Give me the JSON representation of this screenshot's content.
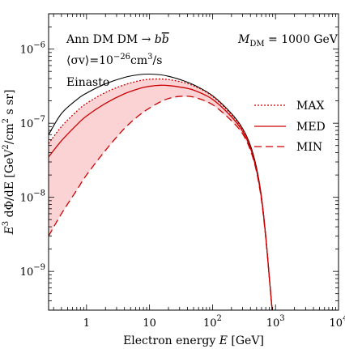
{
  "chart_data": {
    "type": "line",
    "xscale": "log",
    "yscale": "log",
    "xlim": [
      0.25,
      10000
    ],
    "ylim": [
      3e-10,
      3e-06
    ],
    "xlabel": "Electron energy E [GeV]",
    "ylabel": "E^3 dΦ/dE [GeV^2/cm^2 s sr]",
    "xticks": [
      {
        "value": 1,
        "label": "1"
      },
      {
        "value": 10,
        "label": "10"
      },
      {
        "value": 100,
        "label": "10^2"
      },
      {
        "value": 1000,
        "label": "10^3"
      },
      {
        "value": 10000,
        "label": "10^4"
      }
    ],
    "yticks": [
      {
        "value": 1e-09,
        "label": "10^-9"
      },
      {
        "value": 1e-08,
        "label": "10^-8"
      },
      {
        "value": 1e-07,
        "label": "10^-7"
      },
      {
        "value": 1e-06,
        "label": "10^-6"
      }
    ],
    "annotations": [
      {
        "text": "Ann DM DM → b b̄",
        "position": "top-left"
      },
      {
        "text": "⟨σv⟩=10^-26 cm^3/s",
        "position": "top-left"
      },
      {
        "text": "Einasto",
        "position": "top-left"
      },
      {
        "text": "M_DM = 1000 GeV",
        "position": "top-right"
      }
    ],
    "legend": {
      "placement": "right",
      "entries": [
        {
          "label": "MAX",
          "style": "dotted",
          "color": "#cc0000"
        },
        {
          "label": "MED",
          "style": "solid",
          "color": "#cc0000"
        },
        {
          "label": "MIN",
          "style": "dashed",
          "color": "#cc0000"
        }
      ]
    },
    "band": {
      "between": [
        "MAX",
        "MIN"
      ],
      "color": "#fbd3d5"
    },
    "series": [
      {
        "name": "Einasto",
        "style": "solid",
        "color": "#000000",
        "x": [
          0.25,
          0.4,
          0.7,
          1,
          2,
          4,
          7,
          10,
          15,
          20,
          30,
          50,
          100,
          200,
          300,
          400,
          500,
          600,
          700,
          800,
          900
        ],
        "y": [
          7e-08,
          1.35e-07,
          2.08e-07,
          2.55e-07,
          3.4e-07,
          4.15e-07,
          4.53e-07,
          4.6e-07,
          4.5e-07,
          4.3e-07,
          3.9e-07,
          3.3e-07,
          2.35e-07,
          1.35e-07,
          8.5e-08,
          5e-08,
          2.5e-08,
          1e-08,
          3e-09,
          8e-10,
          2.5e-10
        ]
      },
      {
        "name": "MAX",
        "style": "dotted",
        "color": "#cc0000",
        "x": [
          0.25,
          0.4,
          0.7,
          1,
          2,
          4,
          7,
          10,
          15,
          20,
          30,
          50,
          100,
          200,
          300,
          400,
          500,
          600,
          700,
          800,
          900
        ],
        "y": [
          5.3e-08,
          9e-08,
          1.45e-07,
          1.85e-07,
          2.6e-07,
          3.3e-07,
          3.75e-07,
          3.92e-07,
          3.95e-07,
          3.88e-07,
          3.65e-07,
          3.2e-07,
          2.3e-07,
          1.3e-07,
          8.2e-08,
          4.8e-08,
          2.4e-08,
          1e-08,
          3e-09,
          8e-10,
          2.5e-10
        ]
      },
      {
        "name": "MED",
        "style": "solid",
        "color": "#cc0000",
        "x": [
          0.25,
          0.4,
          0.7,
          1,
          2,
          4,
          7,
          10,
          15,
          20,
          30,
          50,
          100,
          200,
          300,
          400,
          500,
          600,
          700,
          800,
          900
        ],
        "y": [
          3.5e-08,
          5.8e-08,
          9.5e-08,
          1.25e-07,
          1.85e-07,
          2.5e-07,
          2.95e-07,
          3.15e-07,
          3.25e-07,
          3.22e-07,
          3.08e-07,
          2.8e-07,
          2.1e-07,
          1.22e-07,
          7.8e-08,
          4.6e-08,
          2.3e-08,
          9.5e-09,
          2.9e-09,
          8e-10,
          2.5e-10
        ]
      },
      {
        "name": "MIN",
        "style": "dashed",
        "color": "#cc0000",
        "x": [
          0.25,
          0.4,
          0.7,
          1,
          2,
          4,
          7,
          10,
          15,
          20,
          30,
          50,
          100,
          200,
          300,
          400,
          500,
          600,
          700,
          800,
          900
        ],
        "y": [
          3e-09,
          6e-09,
          1.25e-08,
          2e-08,
          4.3e-08,
          8.5e-08,
          1.3e-07,
          1.6e-07,
          1.95e-07,
          2.15e-07,
          2.3e-07,
          2.25e-07,
          1.78e-07,
          1.08e-07,
          7.2e-08,
          4.3e-08,
          2.2e-08,
          9e-09,
          2.8e-09,
          8e-10,
          2.5e-10
        ]
      }
    ]
  }
}
